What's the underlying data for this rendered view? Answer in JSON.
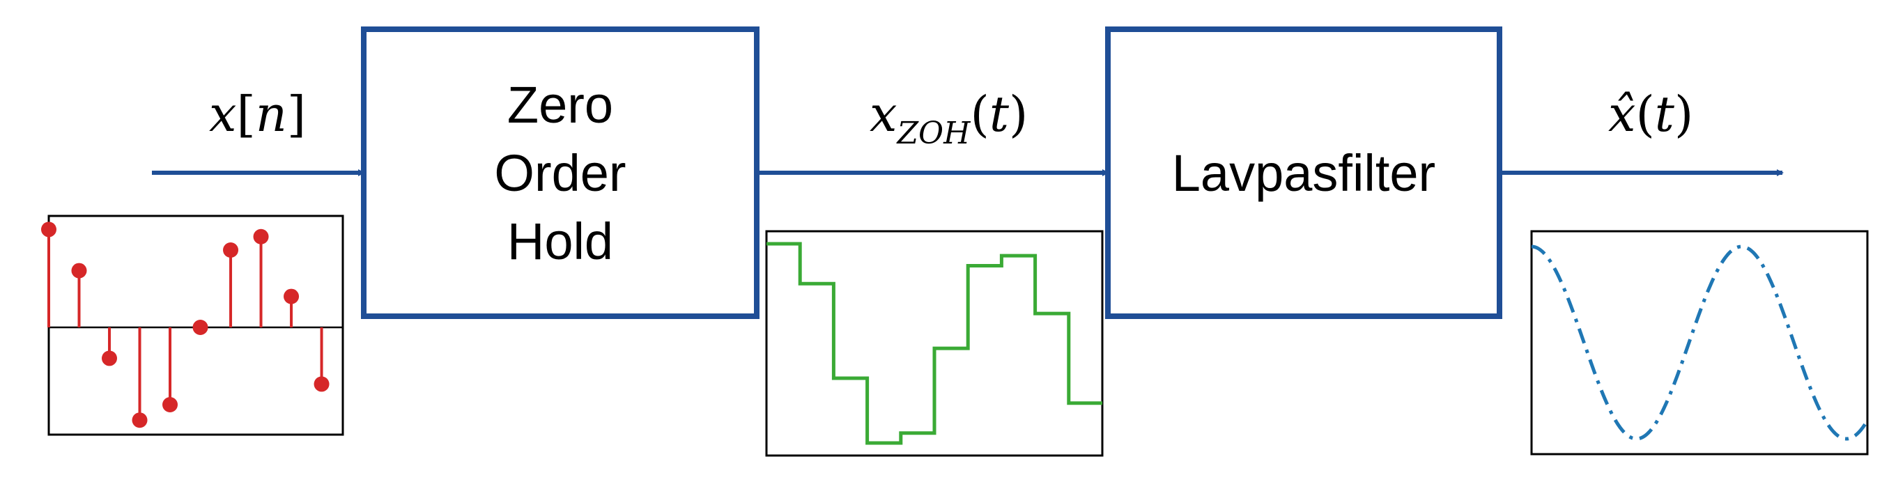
{
  "diagram": {
    "labels": {
      "input": {
        "base": "x",
        "arg": "n"
      },
      "zoh_out": {
        "base": "x",
        "sub": "ZOH",
        "arg": "t"
      },
      "output": {
        "base": "x̂",
        "arg": "t"
      }
    },
    "blocks": {
      "zoh": {
        "line1": "Zero",
        "line2": "Order",
        "line3": "Hold"
      },
      "lowpass": {
        "label": "Lavpasfilter"
      }
    }
  },
  "colors": {
    "block_border": "#1f4e96",
    "arrow": "#1f4e96",
    "stem": "#d62728",
    "zoh_signal": "#3aaa35",
    "sine": "#1f77b4"
  },
  "chart_data": [
    {
      "type": "stem",
      "name": "discrete-signal-x[n]",
      "values": [
        0.95,
        0.55,
        -0.3,
        -0.9,
        -0.75,
        0.0,
        0.75,
        0.88,
        0.3,
        -0.55
      ]
    },
    {
      "type": "step",
      "name": "zoh-signal",
      "values": [
        1.0,
        0.6,
        -0.35,
        -1.0,
        -0.9,
        -0.05,
        0.78,
        0.88,
        0.3,
        -0.6
      ]
    },
    {
      "type": "line",
      "name": "reconstructed-signal",
      "style": "dash-dot",
      "function": "cos",
      "cycles": 1.6
    }
  ]
}
